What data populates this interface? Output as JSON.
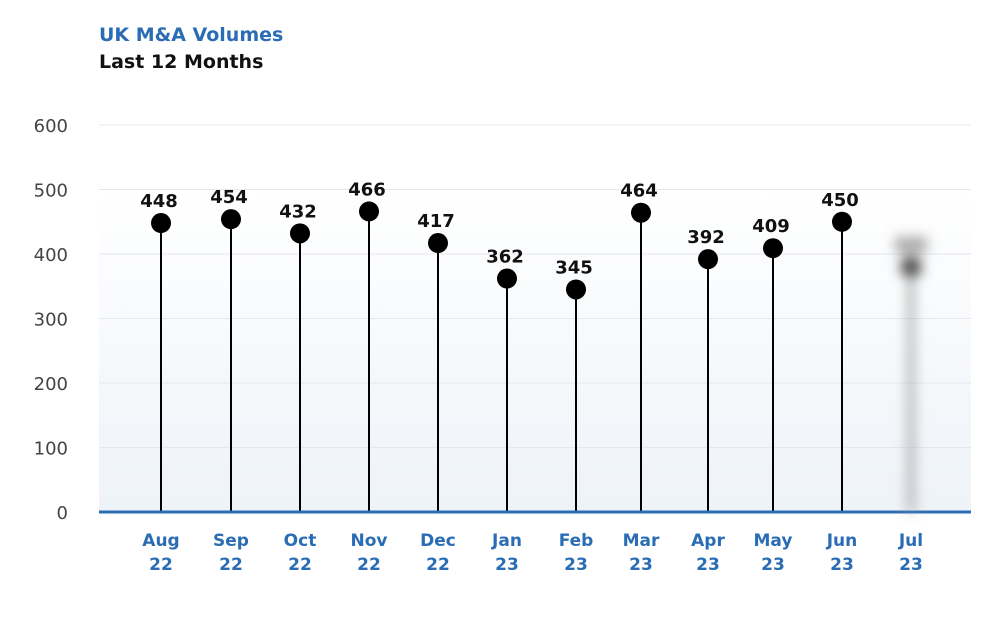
{
  "chart_data": {
    "type": "lollipop",
    "title": "UK M&A Volumes",
    "subtitle": "Last 12 Months",
    "xlabel": "",
    "ylabel": "",
    "ylim": [
      0,
      600
    ],
    "yticks": [
      0,
      100,
      200,
      300,
      400,
      500,
      600
    ],
    "grid": true,
    "categories": [
      [
        "Aug",
        "22"
      ],
      [
        "Sep",
        "22"
      ],
      [
        "Oct",
        "22"
      ],
      [
        "Nov",
        "22"
      ],
      [
        "Dec",
        "22"
      ],
      [
        "Jan",
        "23"
      ],
      [
        "Feb",
        "23"
      ],
      [
        "Mar",
        "23"
      ],
      [
        "Apr",
        "23"
      ],
      [
        "May",
        "23"
      ],
      [
        "Jun",
        "23"
      ],
      [
        "Jul",
        "23"
      ]
    ],
    "values": [
      448,
      454,
      432,
      466,
      417,
      362,
      345,
      464,
      392,
      409,
      450,
      null
    ],
    "data_labels": [
      "448",
      "454",
      "432",
      "466",
      "417",
      "362",
      "345",
      "464",
      "392",
      "409",
      "450",
      ""
    ],
    "blurred_last": true,
    "colors": {
      "title": "#2a6db5",
      "axis": "#2a6db5",
      "marker": "#000000",
      "grid": "#e4e8ee",
      "plot_bg": "#f2f6fa"
    }
  }
}
